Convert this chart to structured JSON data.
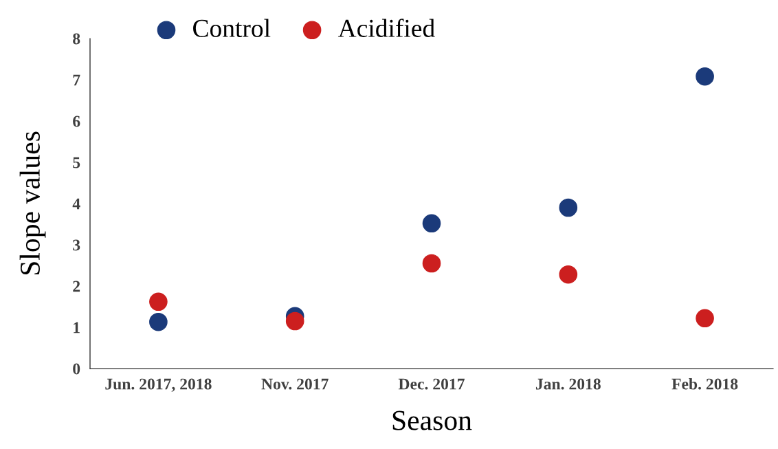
{
  "chart_data": {
    "type": "scatter",
    "xlabel": "Season",
    "ylabel": "Slope values",
    "categories": [
      "Jun. 2017, 2018",
      "Nov. 2017",
      "Dec. 2017",
      "Jan. 2018",
      "Feb. 2018"
    ],
    "series": [
      {
        "name": "Control",
        "color": "#1b3a7a",
        "values": [
          1.13,
          1.27,
          3.52,
          3.9,
          7.08
        ]
      },
      {
        "name": "Acidified",
        "color": "#cc1f1f",
        "values": [
          1.62,
          1.15,
          2.55,
          2.28,
          1.22
        ]
      }
    ],
    "ylim": [
      0,
      8
    ],
    "yticks": [
      0,
      1,
      2,
      3,
      4,
      5,
      6,
      7,
      8
    ],
    "grid": false,
    "legend": "top",
    "marker": "circle"
  }
}
